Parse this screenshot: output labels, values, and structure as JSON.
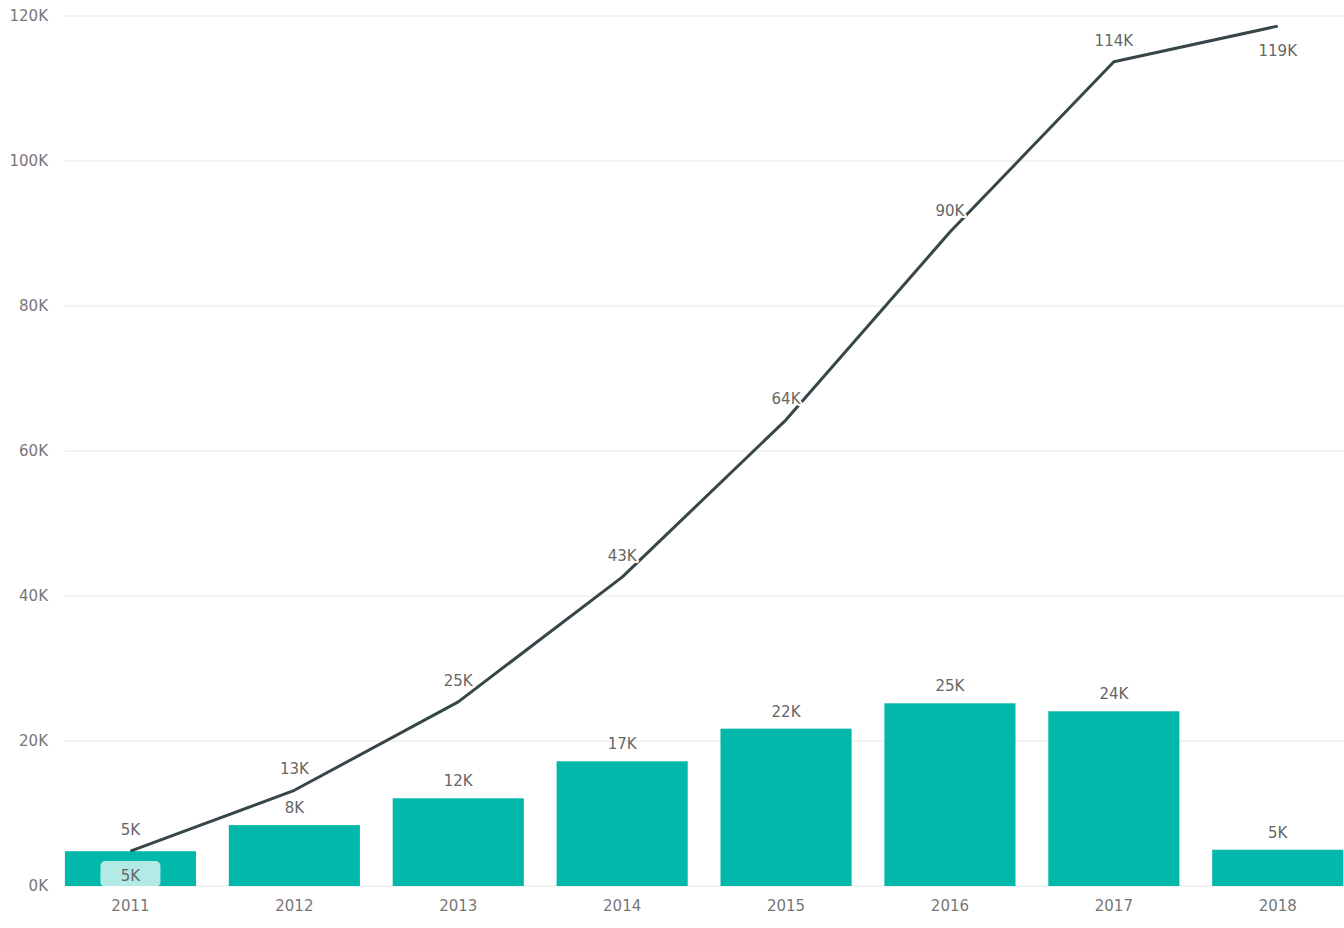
{
  "chart_data": {
    "type": "bar",
    "categories": [
      "2011",
      "2012",
      "2013",
      "2014",
      "2015",
      "2016",
      "2017",
      "2018"
    ],
    "series": [
      {
        "type": "bar",
        "color": "#01b8aa",
        "values": [
          4800,
          8400,
          12100,
          17200,
          21700,
          25200,
          24100,
          5000
        ],
        "value_labels": [
          "5K",
          "8K",
          "12K",
          "17K",
          "22K",
          "25K",
          "24K",
          "5K"
        ]
      },
      {
        "type": "line",
        "color": "#374649",
        "values": [
          4800,
          13200,
          25400,
          42600,
          64300,
          90200,
          113700,
          118600
        ],
        "value_labels": [
          "5K",
          "13K",
          "25K",
          "43K",
          "64K",
          "90K",
          "114K",
          "119K"
        ]
      }
    ],
    "ylim": [
      0,
      120000
    ],
    "yticks": [
      {
        "value": 0,
        "label": "0K"
      },
      {
        "value": 20000,
        "label": "20K"
      },
      {
        "value": 40000,
        "label": "40K"
      },
      {
        "value": 60000,
        "label": "60K"
      },
      {
        "value": 80000,
        "label": "80K"
      },
      {
        "value": 100000,
        "label": "100K"
      },
      {
        "value": 120000,
        "label": "120K"
      }
    ],
    "grid": true,
    "data_labels": true
  }
}
